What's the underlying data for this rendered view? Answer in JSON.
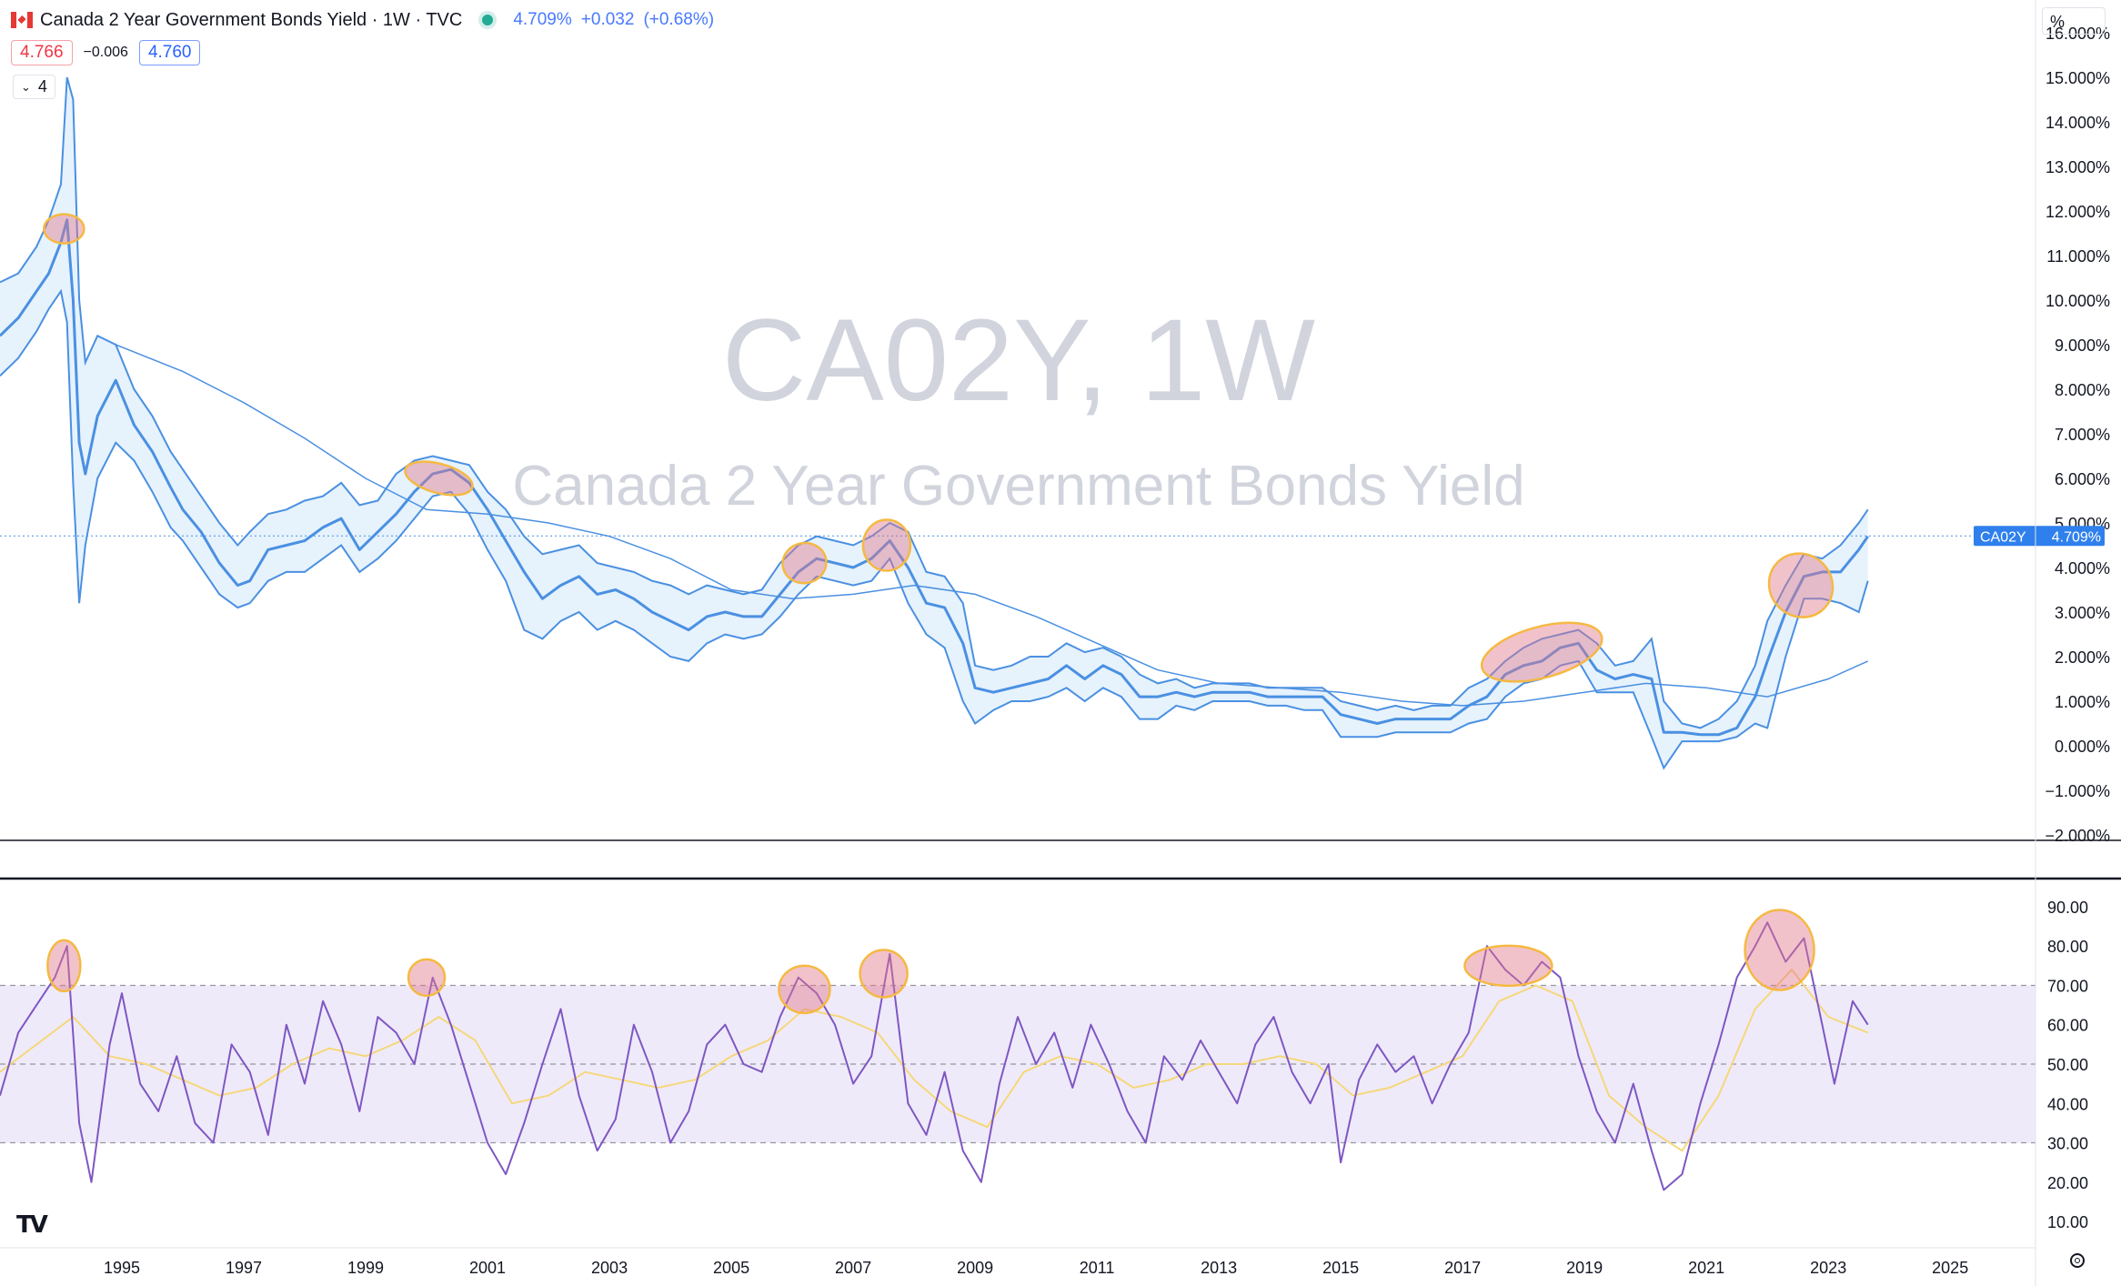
{
  "header": {
    "title": "Canada 2 Year Government Bonds Yield · 1W · TVC",
    "last": "4.709%",
    "change": "+0.032",
    "change_pct": "(+0.68%)",
    "bid": "4.766",
    "spread": "−0.006",
    "ask": "4.760",
    "collapse_count": "4",
    "scale_button": "%"
  },
  "watermark": {
    "symbol": "CA02Y, 1W",
    "description": "Canada 2 Year Government Bonds Yield"
  },
  "price_label": {
    "symbol": "CA02Y",
    "value": "4.709%"
  },
  "colors": {
    "price_line": "#4a90e2",
    "band_fill": "#e6f2fc",
    "rsi_line": "#7e57c2",
    "rsi_ma": "#f5d87a",
    "rsi_band": "#efeafa",
    "highlight_fill": "rgba(226,120,140,0.45)",
    "highlight_stroke": "#f5b942"
  },
  "chart_data": [
    {
      "type": "line",
      "name": "price-pane",
      "y_unit": "%",
      "ylim": [
        -2,
        16
      ],
      "xlim": [
        1993.0,
        2026.4
      ],
      "y_ticks": [
        "16.000%",
        "15.000%",
        "14.000%",
        "13.000%",
        "12.000%",
        "11.000%",
        "10.000%",
        "9.000%",
        "8.000%",
        "7.000%",
        "6.000%",
        "5.000%",
        "4.000%",
        "3.000%",
        "2.000%",
        "1.000%",
        "0.000%",
        "−1.000%",
        "−2.000%"
      ],
      "y_tick_values": [
        16,
        15,
        14,
        13,
        12,
        11,
        10,
        9,
        8,
        7,
        6,
        5,
        4,
        3,
        2,
        1,
        0,
        -1,
        -2
      ],
      "x_ticks": [
        "1995",
        "1997",
        "1999",
        "2001",
        "2003",
        "2005",
        "2007",
        "2009",
        "2011",
        "2013",
        "2015",
        "2017",
        "2019",
        "2021",
        "2023",
        "2025"
      ],
      "x_tick_values": [
        1995,
        1997,
        1999,
        2001,
        2003,
        2005,
        2007,
        2009,
        2011,
        2013,
        2015,
        2017,
        2019,
        2021,
        2023,
        2025
      ],
      "last_value": 4.709,
      "series": [
        {
          "x": [
            1993.0,
            1993.3,
            1993.6,
            1993.8,
            1994.0,
            1994.1,
            1994.2,
            1994.3,
            1994.4,
            1994.6,
            1994.9,
            1995.2,
            1995.5,
            1995.8,
            1996.0,
            1996.3,
            1996.6,
            1996.9,
            1997.1,
            1997.4,
            1997.7,
            1998.0,
            1998.3,
            1998.6,
            1998.9,
            1999.2,
            1999.5,
            1999.8,
            2000.1,
            2000.4,
            2000.7,
            2001.0,
            2001.3,
            2001.6,
            2001.9,
            2002.2,
            2002.5,
            2002.8,
            2003.1,
            2003.4,
            2003.7,
            2004.0,
            2004.3,
            2004.6,
            2004.9,
            2005.2,
            2005.5,
            2005.8,
            2006.1,
            2006.4,
            2006.7,
            2007.0,
            2007.3,
            2007.6,
            2007.9,
            2008.2,
            2008.5,
            2008.8,
            2009.0,
            2009.3,
            2009.6,
            2009.9,
            2010.2,
            2010.5,
            2010.8,
            2011.1,
            2011.4,
            2011.7,
            2012.0,
            2012.3,
            2012.6,
            2012.9,
            2013.2,
            2013.5,
            2013.8,
            2014.1,
            2014.4,
            2014.7,
            2015.0,
            2015.3,
            2015.6,
            2015.9,
            2016.2,
            2016.5,
            2016.8,
            2017.1,
            2017.4,
            2017.7,
            2018.0,
            2018.3,
            2018.6,
            2018.9,
            2019.2,
            2019.5,
            2019.8,
            2020.1,
            2020.3,
            2020.6,
            2020.9,
            2021.2,
            2021.5,
            2021.8,
            2022.0,
            2022.3,
            2022.6,
            2022.9,
            2023.2,
            2023.5,
            2023.65
          ],
          "y": [
            9.2,
            9.6,
            10.2,
            10.6,
            11.3,
            11.8,
            10.0,
            6.8,
            6.1,
            7.4,
            8.2,
            7.2,
            6.6,
            5.8,
            5.3,
            4.8,
            4.1,
            3.6,
            3.7,
            4.4,
            4.5,
            4.6,
            4.9,
            5.1,
            4.4,
            4.8,
            5.2,
            5.7,
            6.1,
            6.2,
            5.9,
            5.3,
            4.6,
            3.9,
            3.3,
            3.6,
            3.8,
            3.4,
            3.5,
            3.3,
            3.0,
            2.8,
            2.6,
            2.9,
            3.0,
            2.9,
            2.9,
            3.4,
            3.9,
            4.2,
            4.1,
            4.0,
            4.2,
            4.6,
            4.0,
            3.2,
            3.1,
            2.3,
            1.3,
            1.2,
            1.3,
            1.4,
            1.5,
            1.8,
            1.5,
            1.8,
            1.6,
            1.1,
            1.1,
            1.2,
            1.1,
            1.2,
            1.2,
            1.2,
            1.1,
            1.1,
            1.1,
            1.1,
            0.7,
            0.6,
            0.5,
            0.6,
            0.6,
            0.6,
            0.6,
            0.9,
            1.1,
            1.6,
            1.8,
            1.9,
            2.2,
            2.3,
            1.7,
            1.5,
            1.6,
            1.5,
            0.3,
            0.3,
            0.25,
            0.25,
            0.4,
            1.1,
            1.9,
            3.0,
            3.8,
            3.9,
            3.9,
            4.4,
            4.7
          ]
        }
      ],
      "band_upper_y": [
        10.4,
        10.6,
        11.2,
        11.8,
        12.6,
        15.0,
        14.5,
        10.0,
        8.6,
        9.2,
        9.0,
        8.0,
        7.4,
        6.6,
        6.2,
        5.6,
        5.0,
        4.5,
        4.8,
        5.2,
        5.3,
        5.5,
        5.6,
        5.9,
        5.4,
        5.5,
        6.1,
        6.4,
        6.5,
        6.4,
        6.3,
        5.7,
        5.3,
        4.7,
        4.3,
        4.4,
        4.5,
        4.1,
        4.0,
        3.9,
        3.7,
        3.6,
        3.4,
        3.6,
        3.5,
        3.4,
        3.5,
        4.1,
        4.5,
        4.7,
        4.6,
        4.5,
        4.7,
        5.0,
        4.8,
        3.9,
        3.8,
        3.2,
        1.8,
        1.7,
        1.8,
        2.0,
        2.0,
        2.3,
        2.1,
        2.2,
        2.0,
        1.6,
        1.4,
        1.5,
        1.3,
        1.4,
        1.4,
        1.4,
        1.3,
        1.3,
        1.3,
        1.3,
        1.0,
        0.9,
        0.8,
        0.9,
        0.8,
        0.9,
        0.9,
        1.3,
        1.5,
        1.9,
        2.2,
        2.4,
        2.5,
        2.6,
        2.3,
        1.8,
        1.9,
        2.4,
        1.0,
        0.5,
        0.4,
        0.6,
        1.0,
        1.8,
        2.8,
        3.6,
        4.3,
        4.2,
        4.5,
        5.0,
        5.3
      ],
      "band_lower_y": [
        8.3,
        8.7,
        9.3,
        9.8,
        10.2,
        9.5,
        5.9,
        3.2,
        4.5,
        6.0,
        6.8,
        6.4,
        5.7,
        4.9,
        4.6,
        4.0,
        3.4,
        3.1,
        3.2,
        3.7,
        3.9,
        3.9,
        4.2,
        4.5,
        3.9,
        4.2,
        4.6,
        5.1,
        5.6,
        5.7,
        5.2,
        4.4,
        3.7,
        2.6,
        2.4,
        2.8,
        3.0,
        2.6,
        2.8,
        2.6,
        2.3,
        2.0,
        1.9,
        2.3,
        2.5,
        2.4,
        2.5,
        2.9,
        3.4,
        3.8,
        3.7,
        3.6,
        3.7,
        4.2,
        3.2,
        2.5,
        2.2,
        1.0,
        0.5,
        0.8,
        1.0,
        1.0,
        1.1,
        1.3,
        1.0,
        1.3,
        1.1,
        0.6,
        0.6,
        0.9,
        0.8,
        1.0,
        1.0,
        1.0,
        0.9,
        0.9,
        0.8,
        0.8,
        0.2,
        0.2,
        0.2,
        0.3,
        0.3,
        0.3,
        0.3,
        0.5,
        0.6,
        1.1,
        1.4,
        1.5,
        1.8,
        1.9,
        1.2,
        1.2,
        1.2,
        0.2,
        -0.5,
        0.1,
        0.1,
        0.1,
        0.2,
        0.5,
        0.4,
        2.0,
        3.3,
        3.3,
        3.2,
        3.0,
        3.7
      ],
      "ma_x": [
        1994.9,
        1996.0,
        1997.0,
        1998.0,
        1999.0,
        2000.0,
        2001.0,
        2002.0,
        2003.0,
        2004.0,
        2005.0,
        2006.0,
        2007.0,
        2008.0,
        2009.0,
        2010.0,
        2011.0,
        2012.0,
        2013.0,
        2014.0,
        2015.0,
        2016.0,
        2017.0,
        2018.0,
        2019.0,
        2020.0,
        2021.0,
        2022.0,
        2023.0,
        2023.65
      ],
      "ma_y": [
        9.0,
        8.4,
        7.7,
        6.9,
        6.0,
        5.3,
        5.2,
        5.0,
        4.7,
        4.2,
        3.5,
        3.3,
        3.4,
        3.6,
        3.4,
        2.9,
        2.3,
        1.7,
        1.4,
        1.3,
        1.2,
        1.0,
        0.9,
        1.0,
        1.2,
        1.4,
        1.3,
        1.1,
        1.5,
        1.9
      ],
      "highlights": [
        {
          "x": 1994.05,
          "y": 11.6
        },
        {
          "x": 2000.2,
          "y": 6.0
        },
        {
          "x": 2006.2,
          "y": 4.1
        },
        {
          "x": 2007.55,
          "y": 4.5
        },
        {
          "x": 2018.3,
          "y": 2.1
        },
        {
          "x": 2022.55,
          "y": 3.6
        }
      ]
    },
    {
      "type": "line",
      "name": "rsi-pane",
      "ylim": [
        7,
        93
      ],
      "y_ticks": [
        "90.00",
        "80.00",
        "70.00",
        "60.00",
        "50.00",
        "40.00",
        "30.00",
        "20.00",
        "10.00"
      ],
      "y_tick_values": [
        90,
        80,
        70,
        60,
        50,
        40,
        30,
        20,
        10
      ],
      "band": [
        30,
        70
      ],
      "midline": 50,
      "series": [
        {
          "x": [
            1993.0,
            1993.3,
            1993.6,
            1993.9,
            1994.1,
            1994.3,
            1994.5,
            1994.8,
            1995.0,
            1995.3,
            1995.6,
            1995.9,
            1996.2,
            1996.5,
            1996.8,
            1997.1,
            1997.4,
            1997.7,
            1998.0,
            1998.3,
            1998.6,
            1998.9,
            1999.2,
            1999.5,
            1999.8,
            2000.1,
            2000.4,
            2000.7,
            2001.0,
            2001.3,
            2001.6,
            2001.9,
            2002.2,
            2002.5,
            2002.8,
            2003.1,
            2003.4,
            2003.7,
            2004.0,
            2004.3,
            2004.6,
            2004.9,
            2005.2,
            2005.5,
            2005.8,
            2006.1,
            2006.4,
            2006.7,
            2007.0,
            2007.3,
            2007.6,
            2007.9,
            2008.2,
            2008.5,
            2008.8,
            2009.1,
            2009.4,
            2009.7,
            2010.0,
            2010.3,
            2010.6,
            2010.9,
            2011.2,
            2011.5,
            2011.8,
            2012.1,
            2012.4,
            2012.7,
            2013.0,
            2013.3,
            2013.6,
            2013.9,
            2014.2,
            2014.5,
            2014.8,
            2015.0,
            2015.3,
            2015.6,
            2015.9,
            2016.2,
            2016.5,
            2016.8,
            2017.1,
            2017.4,
            2017.7,
            2018.0,
            2018.3,
            2018.6,
            2018.9,
            2019.2,
            2019.5,
            2019.8,
            2020.1,
            2020.3,
            2020.6,
            2020.9,
            2021.2,
            2021.5,
            2021.8,
            2022.0,
            2022.3,
            2022.6,
            2022.9,
            2023.1,
            2023.4,
            2023.65
          ],
          "y": [
            42,
            58,
            65,
            72,
            80,
            35,
            20,
            55,
            68,
            45,
            38,
            52,
            35,
            30,
            55,
            48,
            32,
            60,
            45,
            66,
            55,
            38,
            62,
            58,
            50,
            72,
            60,
            45,
            30,
            22,
            35,
            50,
            64,
            42,
            28,
            36,
            60,
            48,
            30,
            38,
            55,
            60,
            50,
            48,
            62,
            72,
            68,
            60,
            45,
            52,
            78,
            40,
            32,
            48,
            28,
            20,
            45,
            62,
            50,
            58,
            44,
            60,
            50,
            38,
            30,
            52,
            46,
            56,
            48,
            40,
            55,
            62,
            48,
            40,
            50,
            25,
            46,
            55,
            48,
            52,
            40,
            50,
            58,
            80,
            74,
            70,
            76,
            72,
            52,
            38,
            30,
            45,
            28,
            18,
            22,
            40,
            55,
            72,
            80,
            86,
            76,
            82,
            60,
            45,
            66,
            60
          ]
        },
        {
          "x": [
            1993.0,
            1993.6,
            1994.2,
            1994.8,
            1995.4,
            1996.0,
            1996.6,
            1997.2,
            1997.8,
            1998.4,
            1999.0,
            1999.6,
            2000.2,
            2000.8,
            2001.4,
            2002.0,
            2002.6,
            2003.2,
            2003.8,
            2004.4,
            2005.0,
            2005.6,
            2006.2,
            2006.8,
            2007.4,
            2008.0,
            2008.6,
            2009.2,
            2009.8,
            2010.4,
            2011.0,
            2011.6,
            2012.2,
            2012.8,
            2013.4,
            2014.0,
            2014.6,
            2015.2,
            2015.8,
            2016.4,
            2017.0,
            2017.6,
            2018.2,
            2018.8,
            2019.4,
            2020.0,
            2020.6,
            2021.2,
            2021.8,
            2022.4,
            2023.0,
            2023.65
          ],
          "y": [
            48,
            55,
            62,
            52,
            50,
            46,
            42,
            44,
            50,
            54,
            52,
            56,
            62,
            56,
            40,
            42,
            48,
            46,
            44,
            46,
            52,
            56,
            64,
            62,
            58,
            46,
            38,
            34,
            48,
            52,
            50,
            44,
            46,
            50,
            50,
            52,
            50,
            42,
            44,
            48,
            52,
            66,
            70,
            66,
            42,
            34,
            28,
            42,
            64,
            74,
            62,
            58
          ]
        }
      ],
      "highlights": [
        {
          "x": 1994.05,
          "y": 75
        },
        {
          "x": 2000.0,
          "y": 72
        },
        {
          "x": 2006.2,
          "y": 69
        },
        {
          "x": 2007.5,
          "y": 73
        },
        {
          "x": 2017.75,
          "y": 75
        },
        {
          "x": 2022.2,
          "y": 79
        }
      ]
    }
  ]
}
